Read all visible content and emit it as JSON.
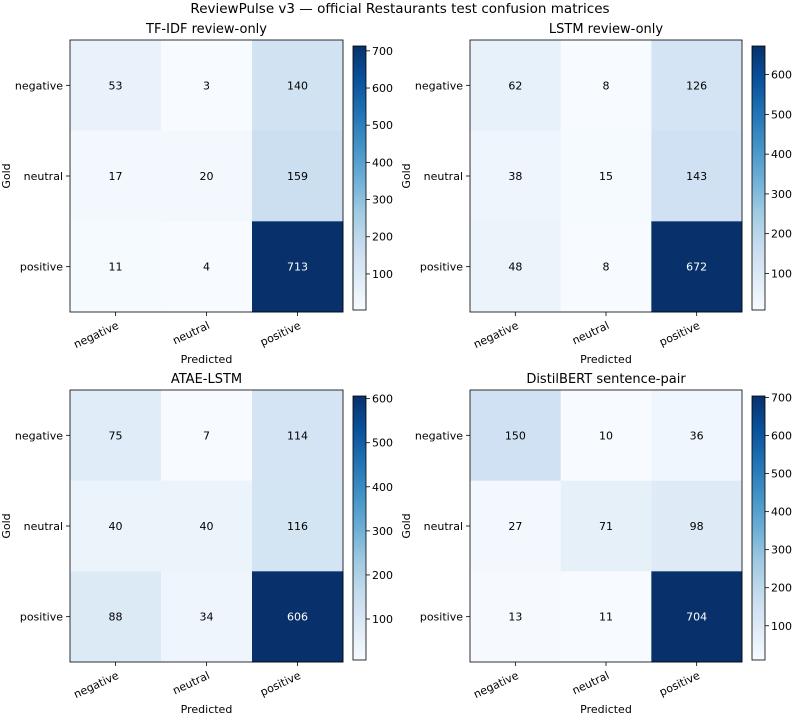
{
  "suptitle": "ReviewPulse v3 — official Restaurants test confusion matrices",
  "colors": {
    "cmap_low": "#f7fbff",
    "cmap_high": "#08306b",
    "text_dark": "#000000",
    "text_light": "#ffffff"
  },
  "chart_data": [
    {
      "type": "heatmap",
      "title": "TF-IDF review-only",
      "xlabel": "Predicted",
      "ylabel": "Gold",
      "x_categories": [
        "negative",
        "neutral",
        "positive"
      ],
      "y_categories": [
        "negative",
        "neutral",
        "positive"
      ],
      "values": [
        [
          53,
          3,
          140
        ],
        [
          17,
          20,
          159
        ],
        [
          11,
          4,
          713
        ]
      ],
      "colorbar_ticks": [
        100,
        200,
        300,
        400,
        500,
        600,
        700
      ],
      "vmin": 3,
      "vmax": 713
    },
    {
      "type": "heatmap",
      "title": "LSTM review-only",
      "xlabel": "Predicted",
      "ylabel": "Gold",
      "x_categories": [
        "negative",
        "neutral",
        "positive"
      ],
      "y_categories": [
        "negative",
        "neutral",
        "positive"
      ],
      "values": [
        [
          62,
          8,
          126
        ],
        [
          38,
          15,
          143
        ],
        [
          48,
          8,
          672
        ]
      ],
      "colorbar_ticks": [
        100,
        200,
        300,
        400,
        500,
        600
      ],
      "vmin": 8,
      "vmax": 672
    },
    {
      "type": "heatmap",
      "title": "ATAE-LSTM",
      "xlabel": "Predicted",
      "ylabel": "Gold",
      "x_categories": [
        "negative",
        "neutral",
        "positive"
      ],
      "y_categories": [
        "negative",
        "neutral",
        "positive"
      ],
      "values": [
        [
          75,
          7,
          114
        ],
        [
          40,
          40,
          116
        ],
        [
          88,
          34,
          606
        ]
      ],
      "colorbar_ticks": [
        100,
        200,
        300,
        400,
        500,
        600
      ],
      "vmin": 7,
      "vmax": 606
    },
    {
      "type": "heatmap",
      "title": "DistilBERT sentence-pair",
      "xlabel": "Predicted",
      "ylabel": "Gold",
      "x_categories": [
        "negative",
        "neutral",
        "positive"
      ],
      "y_categories": [
        "negative",
        "neutral",
        "positive"
      ],
      "values": [
        [
          150,
          10,
          36
        ],
        [
          27,
          71,
          98
        ],
        [
          13,
          11,
          704
        ]
      ],
      "colorbar_ticks": [
        100,
        200,
        300,
        400,
        500,
        600,
        700
      ],
      "vmin": 10,
      "vmax": 704
    }
  ]
}
